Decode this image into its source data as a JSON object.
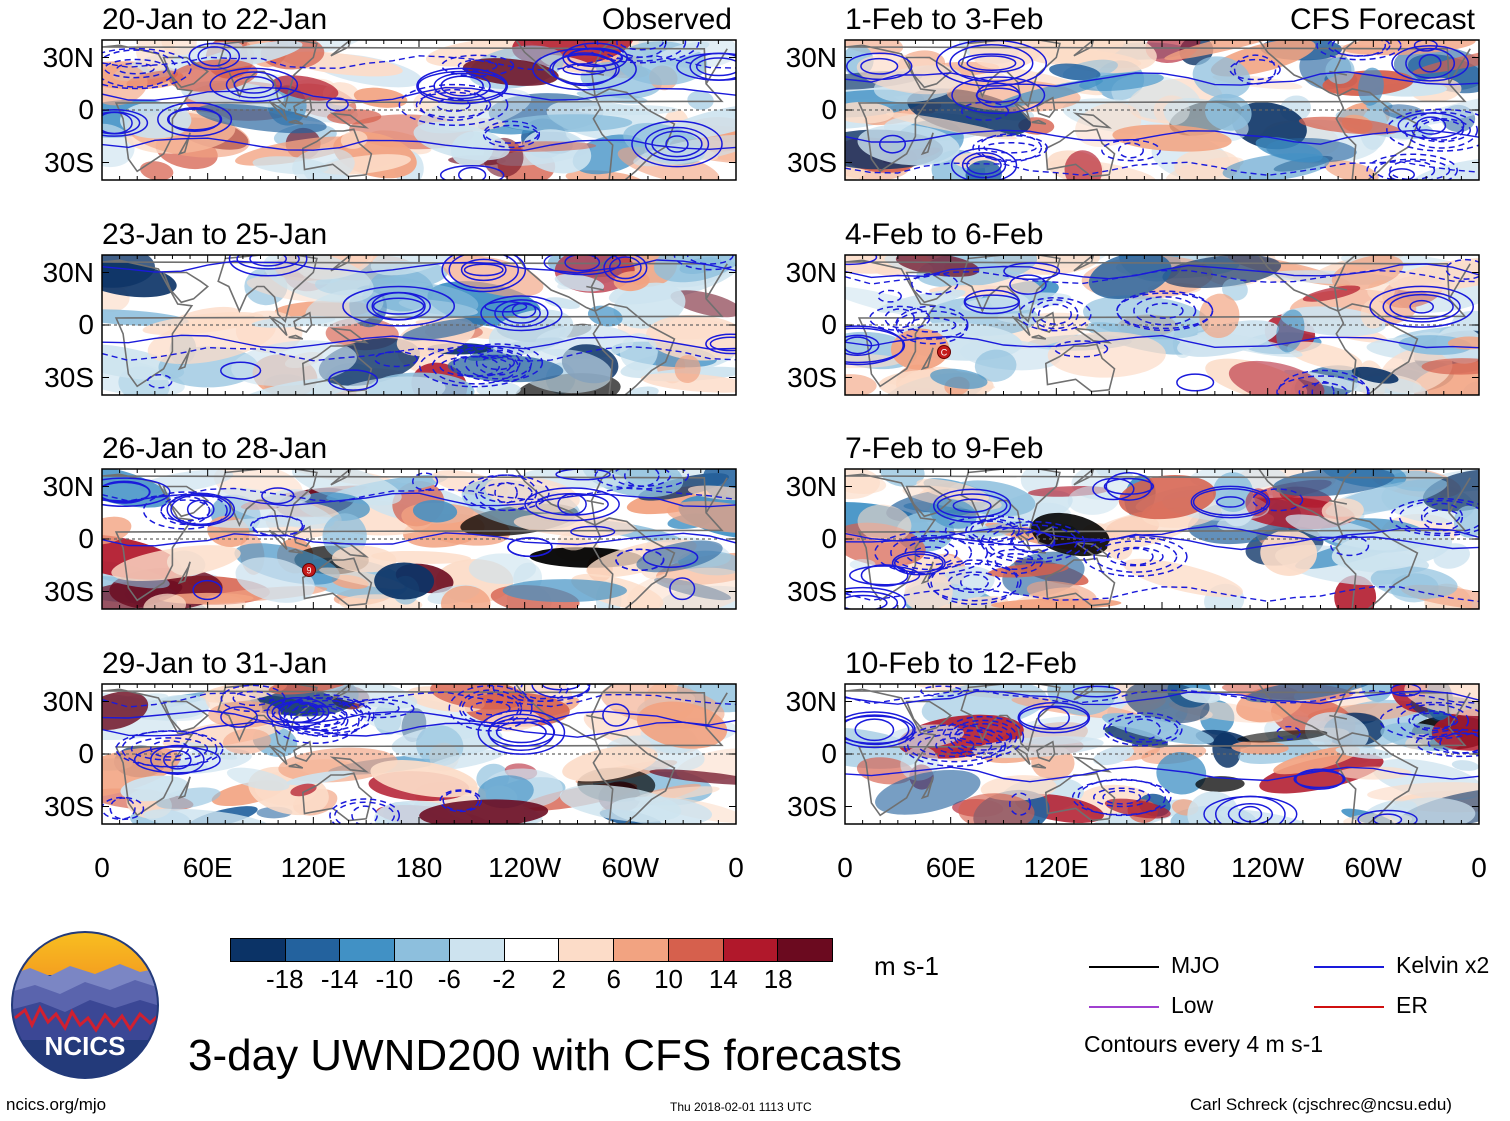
{
  "chart_data": {
    "type": "heatmap",
    "variable": "UWND200 (3-day mean 200-hPa zonal wind) anomaly with filtered wave contours",
    "panels": [
      {
        "period": "20-Jan to 22-Jan",
        "source": "Observed"
      },
      {
        "period": "23-Jan to 25-Jan",
        "source": ""
      },
      {
        "period": "26-Jan to 28-Jan",
        "source": ""
      },
      {
        "period": "29-Jan to 31-Jan",
        "source": ""
      },
      {
        "period": "1-Feb to 3-Feb",
        "source": "CFS Forecast"
      },
      {
        "period": "4-Feb to 6-Feb",
        "source": ""
      },
      {
        "period": "7-Feb to 9-Feb",
        "source": ""
      },
      {
        "period": "10-Feb to 12-Feb",
        "source": ""
      }
    ],
    "y_ticks": [
      "30N",
      "0",
      "30S"
    ],
    "y_range_degrees": [
      -40,
      40
    ],
    "x_ticks": [
      "0",
      "60E",
      "120E",
      "180",
      "120W",
      "60W",
      "0"
    ],
    "x_range_degrees_east": [
      0,
      360
    ],
    "colorbar": {
      "tick_labels": [
        "-18",
        "-14",
        "-10",
        "-6",
        "-2",
        "2",
        "6",
        "10",
        "14",
        "18"
      ],
      "colors": [
        "#0b3366",
        "#23629e",
        "#4191c5",
        "#8dbfdd",
        "#cde3ef",
        "#ffffff",
        "#fcdcc8",
        "#f2a381",
        "#d6604d",
        "#b1182b",
        "#6b0a1f"
      ],
      "units": "m s-1"
    },
    "legend": [
      {
        "label": "MJO",
        "color": "#000000"
      },
      {
        "label": "Kelvin x2",
        "color": "#1a1adb"
      },
      {
        "label": "Low",
        "color": "#a040d0"
      },
      {
        "label": "ER",
        "color": "#d01010"
      }
    ],
    "contour_note": "Contours every 4 m s-1"
  },
  "main_title": "3-day UWND200 with CFS forecasts",
  "footer": {
    "left": "ncics.org/mjo",
    "center": "Thu 2018-02-01 1113 UTC",
    "right": "Carl Schreck (cjschrec@ncsu.edu)"
  },
  "logo_text": "NCICS",
  "storm_markers": [
    "9",
    "C"
  ]
}
